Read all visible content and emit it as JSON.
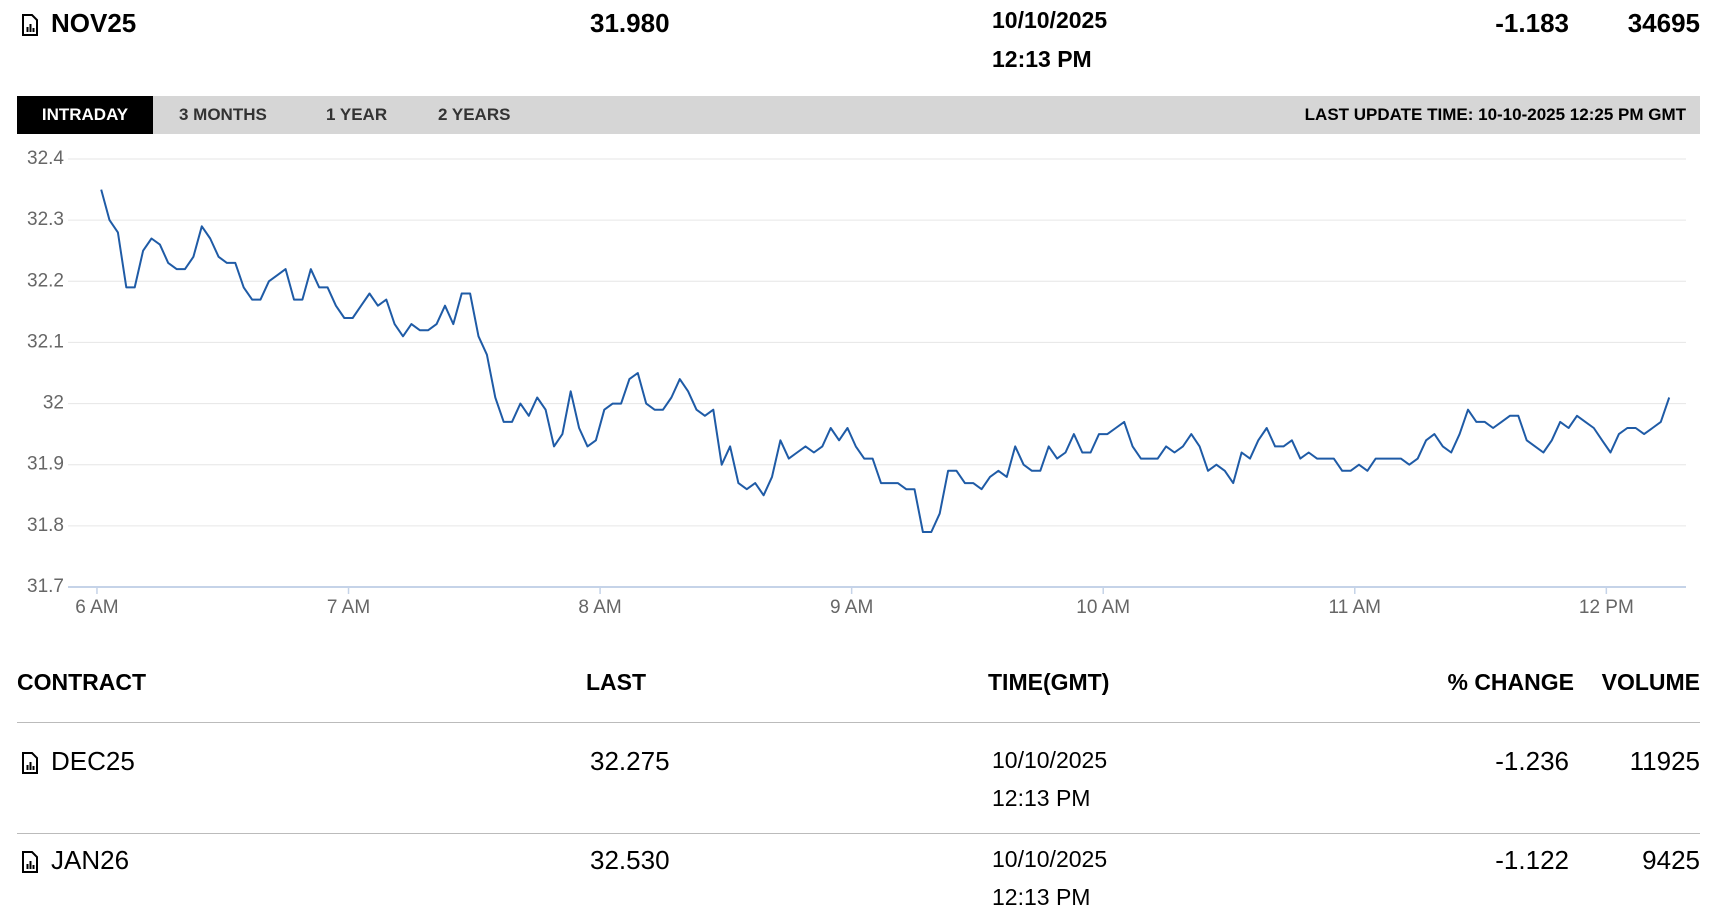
{
  "quote": {
    "symbol": "NOV25",
    "last": "31.980",
    "date": "10/10/2025",
    "time": "12:13 PM",
    "change": "-1.183",
    "volume": "34695"
  },
  "tabs": [
    "INTRADAY",
    "3 MONTHS",
    "1 YEAR",
    "2 YEARS"
  ],
  "last_update": "LAST UPDATE TIME: 10-10-2025 12:25 PM GMT",
  "chart_data": {
    "type": "line",
    "color": "#1f5ba6",
    "grid": true,
    "xlim": [
      355,
      739
    ],
    "xticks": [
      {
        "value": 360,
        "label": "6 AM"
      },
      {
        "value": 420,
        "label": "7 AM"
      },
      {
        "value": 480,
        "label": "8 AM"
      },
      {
        "value": 540,
        "label": "9 AM"
      },
      {
        "value": 600,
        "label": "10 AM"
      },
      {
        "value": 660,
        "label": "11 AM"
      },
      {
        "value": 720,
        "label": "12 PM"
      }
    ],
    "ylim": [
      31.7,
      32.4
    ],
    "yticks": [
      31.7,
      31.8,
      31.9,
      32,
      32.1,
      32.2,
      32.3,
      32.4
    ],
    "x": [
      361,
      363,
      365,
      367,
      369,
      371,
      373,
      375,
      377,
      379,
      381,
      383,
      385,
      387,
      389,
      391,
      393,
      395,
      397,
      399,
      401,
      403,
      405,
      407,
      409,
      411,
      413,
      415,
      417,
      419,
      421,
      423,
      425,
      427,
      429,
      431,
      433,
      435,
      437,
      439,
      441,
      443,
      445,
      447,
      449,
      451,
      453,
      455,
      457,
      459,
      461,
      463,
      465,
      467,
      469,
      471,
      473,
      475,
      477,
      479,
      481,
      483,
      485,
      487,
      489,
      491,
      493,
      495,
      497,
      499,
      501,
      503,
      505,
      507,
      509,
      511,
      513,
      515,
      517,
      519,
      521,
      523,
      525,
      527,
      529,
      531,
      533,
      535,
      537,
      539,
      541,
      543,
      545,
      547,
      549,
      551,
      553,
      555,
      557,
      559,
      561,
      563,
      565,
      567,
      569,
      571,
      573,
      575,
      577,
      579,
      581,
      583,
      585,
      587,
      589,
      591,
      593,
      595,
      597,
      599,
      601,
      603,
      605,
      607,
      609,
      611,
      613,
      615,
      617,
      619,
      621,
      623,
      625,
      627,
      629,
      631,
      633,
      635,
      637,
      639,
      641,
      643,
      645,
      647,
      649,
      651,
      653,
      655,
      657,
      659,
      661,
      663,
      665,
      667,
      669,
      671,
      673,
      675,
      677,
      679,
      681,
      683,
      685,
      687,
      689,
      691,
      693,
      695,
      697,
      699,
      701,
      703,
      705,
      707,
      709,
      711,
      713,
      715,
      717,
      719,
      721,
      723,
      725,
      727,
      729,
      731,
      733,
      735
    ],
    "values": [
      32.35,
      32.3,
      32.28,
      32.19,
      32.19,
      32.25,
      32.27,
      32.26,
      32.23,
      32.22,
      32.22,
      32.24,
      32.29,
      32.27,
      32.24,
      32.23,
      32.23,
      32.19,
      32.17,
      32.17,
      32.2,
      32.21,
      32.22,
      32.17,
      32.17,
      32.22,
      32.19,
      32.19,
      32.16,
      32.14,
      32.14,
      32.16,
      32.18,
      32.16,
      32.17,
      32.13,
      32.11,
      32.13,
      32.12,
      32.12,
      32.13,
      32.16,
      32.13,
      32.18,
      32.18,
      32.11,
      32.08,
      32.01,
      31.97,
      31.97,
      32.0,
      31.98,
      32.01,
      31.99,
      31.93,
      31.95,
      32.02,
      31.96,
      31.93,
      31.94,
      31.99,
      32.0,
      32.0,
      32.04,
      32.05,
      32.0,
      31.99,
      31.99,
      32.01,
      32.04,
      32.02,
      31.99,
      31.98,
      31.99,
      31.9,
      31.93,
      31.87,
      31.86,
      31.87,
      31.85,
      31.88,
      31.94,
      31.91,
      31.92,
      31.93,
      31.92,
      31.93,
      31.96,
      31.94,
      31.96,
      31.93,
      31.91,
      31.91,
      31.87,
      31.87,
      31.87,
      31.86,
      31.86,
      31.79,
      31.79,
      31.82,
      31.89,
      31.89,
      31.87,
      31.87,
      31.86,
      31.88,
      31.89,
      31.88,
      31.93,
      31.9,
      31.89,
      31.89,
      31.93,
      31.91,
      31.92,
      31.95,
      31.92,
      31.92,
      31.95,
      31.95,
      31.96,
      31.97,
      31.93,
      31.91,
      31.91,
      31.91,
      31.93,
      31.92,
      31.93,
      31.95,
      31.93,
      31.89,
      31.9,
      31.89,
      31.87,
      31.92,
      31.91,
      31.94,
      31.96,
      31.93,
      31.93,
      31.94,
      31.91,
      31.92,
      31.91,
      31.91,
      31.91,
      31.89,
      31.89,
      31.9,
      31.89,
      31.91,
      31.91,
      31.91,
      31.91,
      31.9,
      31.91,
      31.94,
      31.95,
      31.93,
      31.92,
      31.95,
      31.99,
      31.97,
      31.97,
      31.96,
      31.97,
      31.98,
      31.98,
      31.94,
      31.93,
      31.92,
      31.94,
      31.97,
      31.96,
      31.98,
      31.97,
      31.96,
      31.94,
      31.92,
      31.95,
      31.96,
      31.96,
      31.95,
      31.96,
      31.97,
      32.01
    ]
  },
  "table": {
    "columns": [
      "CONTRACT",
      "LAST",
      "TIME(GMT)",
      "% CHANGE",
      "VOLUME"
    ],
    "rows": [
      [
        "DEC25",
        "32.275",
        "10/10/2025",
        "12:13 PM",
        "-1.236",
        "11925"
      ],
      [
        "JAN26",
        "32.530",
        "10/10/2025",
        "12:13 PM",
        "-1.122",
        "9425"
      ]
    ]
  }
}
